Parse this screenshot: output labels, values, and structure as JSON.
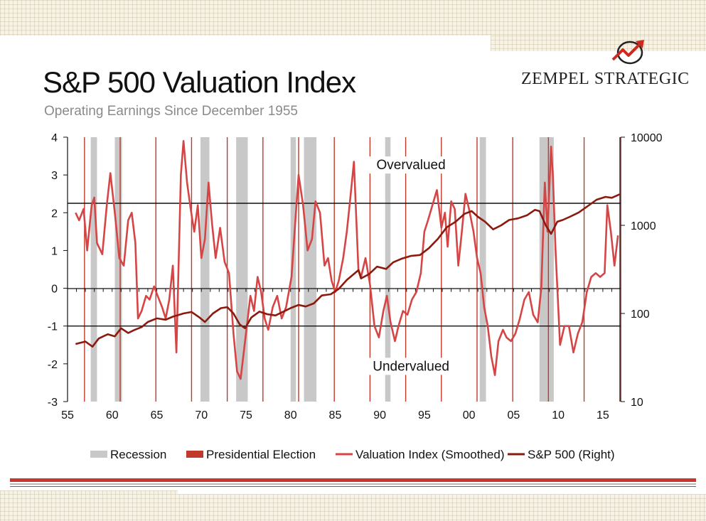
{
  "header": {
    "title": "S&P 500 Valuation Index",
    "subtitle": "Operating Earnings Since December 1955",
    "brand_part1": "Zempel",
    "brand_part2": "Strategic",
    "logo_icon": "chart-arrow-logo-icon"
  },
  "colors": {
    "recession": "#c8c8c8",
    "election": "#c0392b",
    "valuation": "#d64545",
    "sp500": "#8b1a0e",
    "threshold": "#111111"
  },
  "chart_data": {
    "type": "line",
    "title": "S&P 500 Valuation Index",
    "subtitle": "Operating Earnings Since December 1955",
    "xlim": [
      1955,
      2017
    ],
    "ylim_left": [
      -3,
      4
    ],
    "ylim_right": [
      10,
      10000
    ],
    "right_scale": "log",
    "x_tick_values": [
      1955,
      1960,
      1965,
      1970,
      1975,
      1980,
      1985,
      1990,
      1995,
      2000,
      2005,
      2010,
      2015
    ],
    "x_tick_labels": [
      "55",
      "60",
      "65",
      "70",
      "75",
      "80",
      "85",
      "90",
      "95",
      "00",
      "05",
      "10",
      "15"
    ],
    "left_ticks": [
      4,
      3,
      2,
      1,
      0,
      -1,
      -2,
      -3
    ],
    "right_ticks": [
      10000,
      1000,
      100,
      10
    ],
    "thresholds": [
      2.25,
      -1.0
    ],
    "annotations": [
      {
        "text": "Overvalued",
        "x": 1993.5,
        "y": 3.15
      },
      {
        "text": "Undervalued",
        "x": 1993.5,
        "y": -2.18
      }
    ],
    "recessions": [
      [
        1957.6,
        1958.3
      ],
      [
        1960.3,
        1961.1
      ],
      [
        1969.9,
        1970.9
      ],
      [
        1973.9,
        1975.2
      ],
      [
        1980.0,
        1980.6
      ],
      [
        1981.5,
        1982.9
      ],
      [
        1990.6,
        1991.2
      ],
      [
        2001.2,
        2001.9
      ],
      [
        2007.9,
        2009.5
      ]
    ],
    "elections": [
      1956.9,
      1960.9,
      1964.9,
      1968.9,
      1972.9,
      1976.9,
      1980.9,
      1984.9,
      1988.9,
      1992.9,
      1996.9,
      2000.9,
      2004.9,
      2008.9,
      2012.9,
      2016.9
    ],
    "series": [
      {
        "name": "Valuation Index (Smoothed)",
        "axis": "left",
        "x": [
          1955.9,
          1956.3,
          1956.8,
          1957.2,
          1957.7,
          1958.0,
          1958.3,
          1958.9,
          1959.4,
          1959.8,
          1960.3,
          1960.8,
          1961.3,
          1961.8,
          1962.2,
          1962.6,
          1962.9,
          1963.3,
          1963.8,
          1964.2,
          1964.7,
          1965.1,
          1965.6,
          1966.0,
          1966.4,
          1966.8,
          1967.2,
          1967.7,
          1968.0,
          1968.4,
          1968.8,
          1969.2,
          1969.6,
          1970.0,
          1970.4,
          1970.8,
          1971.2,
          1971.6,
          1972.1,
          1972.6,
          1973.1,
          1973.6,
          1974.0,
          1974.4,
          1974.7,
          1975.1,
          1975.5,
          1975.9,
          1976.3,
          1976.7,
          1977.1,
          1977.5,
          1978.0,
          1978.5,
          1979.0,
          1979.5,
          1980.1,
          1980.6,
          1980.9,
          1981.4,
          1981.9,
          1982.4,
          1982.8,
          1983.3,
          1983.8,
          1984.2,
          1984.6,
          1985.0,
          1985.4,
          1985.9,
          1986.3,
          1986.7,
          1987.1,
          1987.6,
          1987.9,
          1988.4,
          1988.9,
          1989.4,
          1989.9,
          1990.4,
          1990.8,
          1991.2,
          1991.7,
          1992.1,
          1992.6,
          1993.1,
          1993.6,
          1994.1,
          1994.6,
          1995.0,
          1995.4,
          1995.9,
          1996.4,
          1996.9,
          1997.3,
          1997.6,
          1998.0,
          1998.4,
          1998.8,
          1999.2,
          1999.6,
          2000.0,
          2000.5,
          2000.9,
          2001.3,
          2001.7,
          2002.1,
          2002.5,
          2002.9,
          2003.3,
          2003.8,
          2004.2,
          2004.7,
          2005.2,
          2005.7,
          2006.2,
          2006.7,
          2007.2,
          2007.7,
          2008.1,
          2008.5,
          2008.8,
          2009.2,
          2009.4,
          2009.7,
          2010.2,
          2010.7,
          2011.2,
          2011.7,
          2012.2,
          2012.7,
          2013.2,
          2013.7,
          2014.2,
          2014.7,
          2015.2,
          2015.5,
          2015.9,
          2016.3,
          2016.7
        ],
        "values": [
          2.0,
          1.8,
          2.1,
          1.0,
          2.2,
          2.4,
          1.2,
          0.9,
          2.2,
          3.05,
          2.0,
          0.8,
          0.6,
          1.8,
          2.0,
          1.2,
          -0.8,
          -0.6,
          -0.2,
          -0.3,
          0.05,
          -0.2,
          -0.5,
          -0.8,
          -0.3,
          0.6,
          -1.7,
          3.0,
          3.9,
          2.8,
          2.1,
          1.5,
          2.2,
          0.8,
          1.3,
          2.8,
          1.7,
          0.8,
          1.6,
          0.7,
          0.4,
          -1.2,
          -2.2,
          -2.4,
          -1.8,
          -1.0,
          -0.2,
          -0.6,
          0.3,
          -0.1,
          -0.8,
          -1.1,
          -0.5,
          -0.2,
          -0.8,
          -0.5,
          0.3,
          2.0,
          3.0,
          2.2,
          1.0,
          1.3,
          2.3,
          2.0,
          0.6,
          0.8,
          0.2,
          -0.1,
          0.2,
          0.8,
          1.5,
          2.4,
          3.35,
          0.5,
          0.3,
          0.8,
          0.1,
          -1.0,
          -1.3,
          -0.6,
          -0.2,
          -0.9,
          -1.4,
          -1.0,
          -0.6,
          -0.7,
          -0.3,
          -0.1,
          0.4,
          1.5,
          1.8,
          2.2,
          2.6,
          1.6,
          2.0,
          1.1,
          2.3,
          2.1,
          0.6,
          1.5,
          2.5,
          2.1,
          1.5,
          0.8,
          0.4,
          -0.5,
          -1.0,
          -1.8,
          -2.3,
          -1.4,
          -1.1,
          -1.3,
          -1.4,
          -1.2,
          -0.8,
          -0.3,
          -0.1,
          -0.7,
          -0.9,
          0.0,
          2.8,
          1.5,
          3.75,
          3.0,
          1.0,
          -1.5,
          -1.0,
          -1.0,
          -1.7,
          -1.2,
          -0.9,
          -0.1,
          0.3,
          0.4,
          0.3,
          0.4,
          2.2,
          1.5,
          0.6,
          1.4
        ]
      },
      {
        "name": "S&P 500 (Right)",
        "axis": "right",
        "x": [
          1955.9,
          1957.0,
          1957.8,
          1958.5,
          1959.5,
          1960.3,
          1961.0,
          1961.8,
          1962.5,
          1963.3,
          1964.0,
          1965.0,
          1966.0,
          1966.8,
          1968.0,
          1968.9,
          1969.8,
          1970.4,
          1971.3,
          1972.2,
          1972.9,
          1973.6,
          1974.3,
          1974.9,
          1975.6,
          1976.5,
          1977.4,
          1978.3,
          1979.2,
          1980.0,
          1980.9,
          1981.7,
          1982.6,
          1983.5,
          1984.5,
          1985.4,
          1986.3,
          1987.6,
          1987.9,
          1988.8,
          1989.7,
          1990.7,
          1991.5,
          1992.5,
          1993.5,
          1994.5,
          1995.5,
          1996.5,
          1997.5,
          1998.5,
          1999.5,
          2000.3,
          2001.0,
          2001.8,
          2002.7,
          2003.6,
          2004.5,
          2005.5,
          2006.5,
          2007.4,
          2007.9,
          2008.6,
          2009.2,
          2009.9,
          2010.5,
          2011.3,
          2012.3,
          2013.3,
          2014.3,
          2015.3,
          2016.0,
          2016.9
        ],
        "values": [
          45,
          48,
          42,
          52,
          58,
          55,
          68,
          60,
          65,
          70,
          80,
          88,
          85,
          92,
          100,
          104,
          90,
          80,
          100,
          115,
          118,
          100,
          75,
          68,
          90,
          105,
          98,
          95,
          105,
          115,
          125,
          120,
          130,
          160,
          165,
          190,
          240,
          310,
          250,
          280,
          340,
          320,
          380,
          420,
          450,
          460,
          550,
          700,
          950,
          1100,
          1350,
          1450,
          1250,
          1100,
          900,
          1000,
          1150,
          1200,
          1300,
          1500,
          1450,
          1000,
          800,
          1100,
          1150,
          1250,
          1400,
          1650,
          1950,
          2100,
          2050,
          2250
        ]
      }
    ],
    "legend": {
      "placement": "bottom",
      "entries": [
        {
          "label": "Recession",
          "kind": "recession"
        },
        {
          "label": "Presidential Election",
          "kind": "election"
        },
        {
          "label": "Valuation Index (Smoothed)",
          "kind": "valuation"
        },
        {
          "label": "S&P 500 (Right)",
          "kind": "sp500"
        }
      ]
    }
  }
}
